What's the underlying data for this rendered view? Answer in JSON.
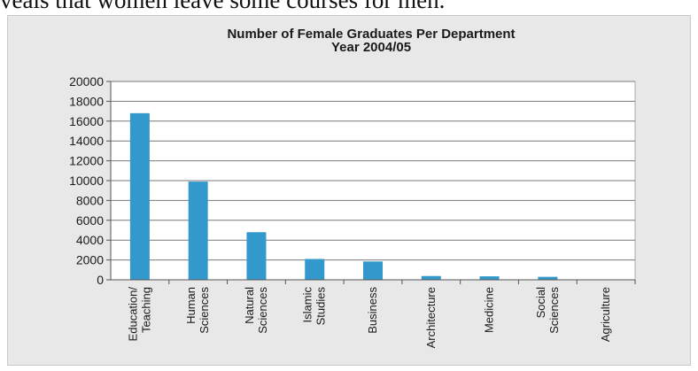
{
  "caption": "veals that women leave some courses for men.",
  "chart_data": {
    "type": "bar",
    "title": [
      "Number of Female Graduates Per Department",
      "Year 2004/05"
    ],
    "xlabel": "",
    "ylabel": "",
    "ylim": [
      0,
      20000
    ],
    "yticks": [
      "0",
      "2000",
      "4000",
      "6000",
      "8000",
      "10000",
      "12000",
      "14000",
      "16000",
      "18000",
      "20000"
    ],
    "grid": true,
    "categories": [
      [
        "Education/",
        "Teaching"
      ],
      [
        "Human",
        "Sciences"
      ],
      [
        "Natural",
        "Sciences"
      ],
      [
        "Islamic",
        "Studies"
      ],
      [
        "Business"
      ],
      [
        "Architecture"
      ],
      [
        "Medicine"
      ],
      [
        "Social",
        "Sciences"
      ],
      [
        "Agriculture"
      ]
    ],
    "values": [
      16800,
      9900,
      4800,
      2100,
      1850,
      380,
      350,
      300,
      0
    ],
    "bar_color": "#3399cc"
  }
}
